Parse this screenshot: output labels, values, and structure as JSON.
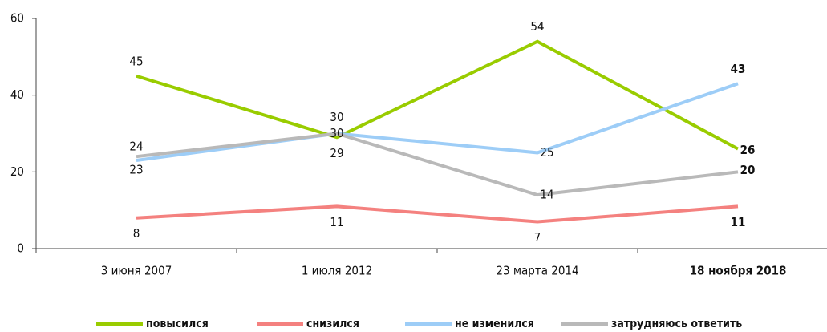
{
  "chart_data": {
    "type": "line",
    "categories": [
      "3 июня 2007",
      "1 июля 2012",
      "23 марта 2014",
      "18 ноября 2018"
    ],
    "series": [
      {
        "name": "повысился",
        "color": "#99cc00",
        "values": [
          45,
          29,
          54,
          26
        ]
      },
      {
        "name": "снизился",
        "color": "#f4817f",
        "values": [
          8,
          11,
          7,
          11
        ]
      },
      {
        "name": "не изменился",
        "color": "#9dcdf7",
        "values": [
          23,
          30,
          25,
          43
        ]
      },
      {
        "name": "затрудняюсь ответить",
        "color": "#b9b9b9",
        "values": [
          24,
          30,
          14,
          20
        ]
      }
    ],
    "ylim": [
      0,
      60
    ],
    "yticks": [
      0,
      20,
      40,
      60
    ],
    "legend": "bottom"
  }
}
